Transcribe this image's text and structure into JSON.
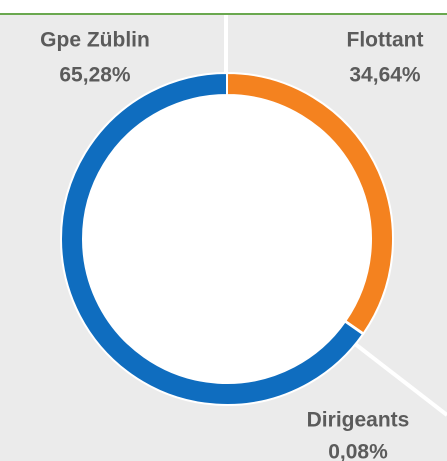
{
  "chart_data": {
    "type": "donut",
    "categories": [
      "Flottant",
      "Dirigeants",
      "Gpe Züblin"
    ],
    "values": [
      34.64,
      0.08,
      65.28
    ],
    "value_labels": [
      "34,64%",
      "0,08%",
      "65,28%"
    ],
    "colors": [
      "#f4821f",
      "#1e9a3a",
      "#0f6dbf"
    ]
  }
}
